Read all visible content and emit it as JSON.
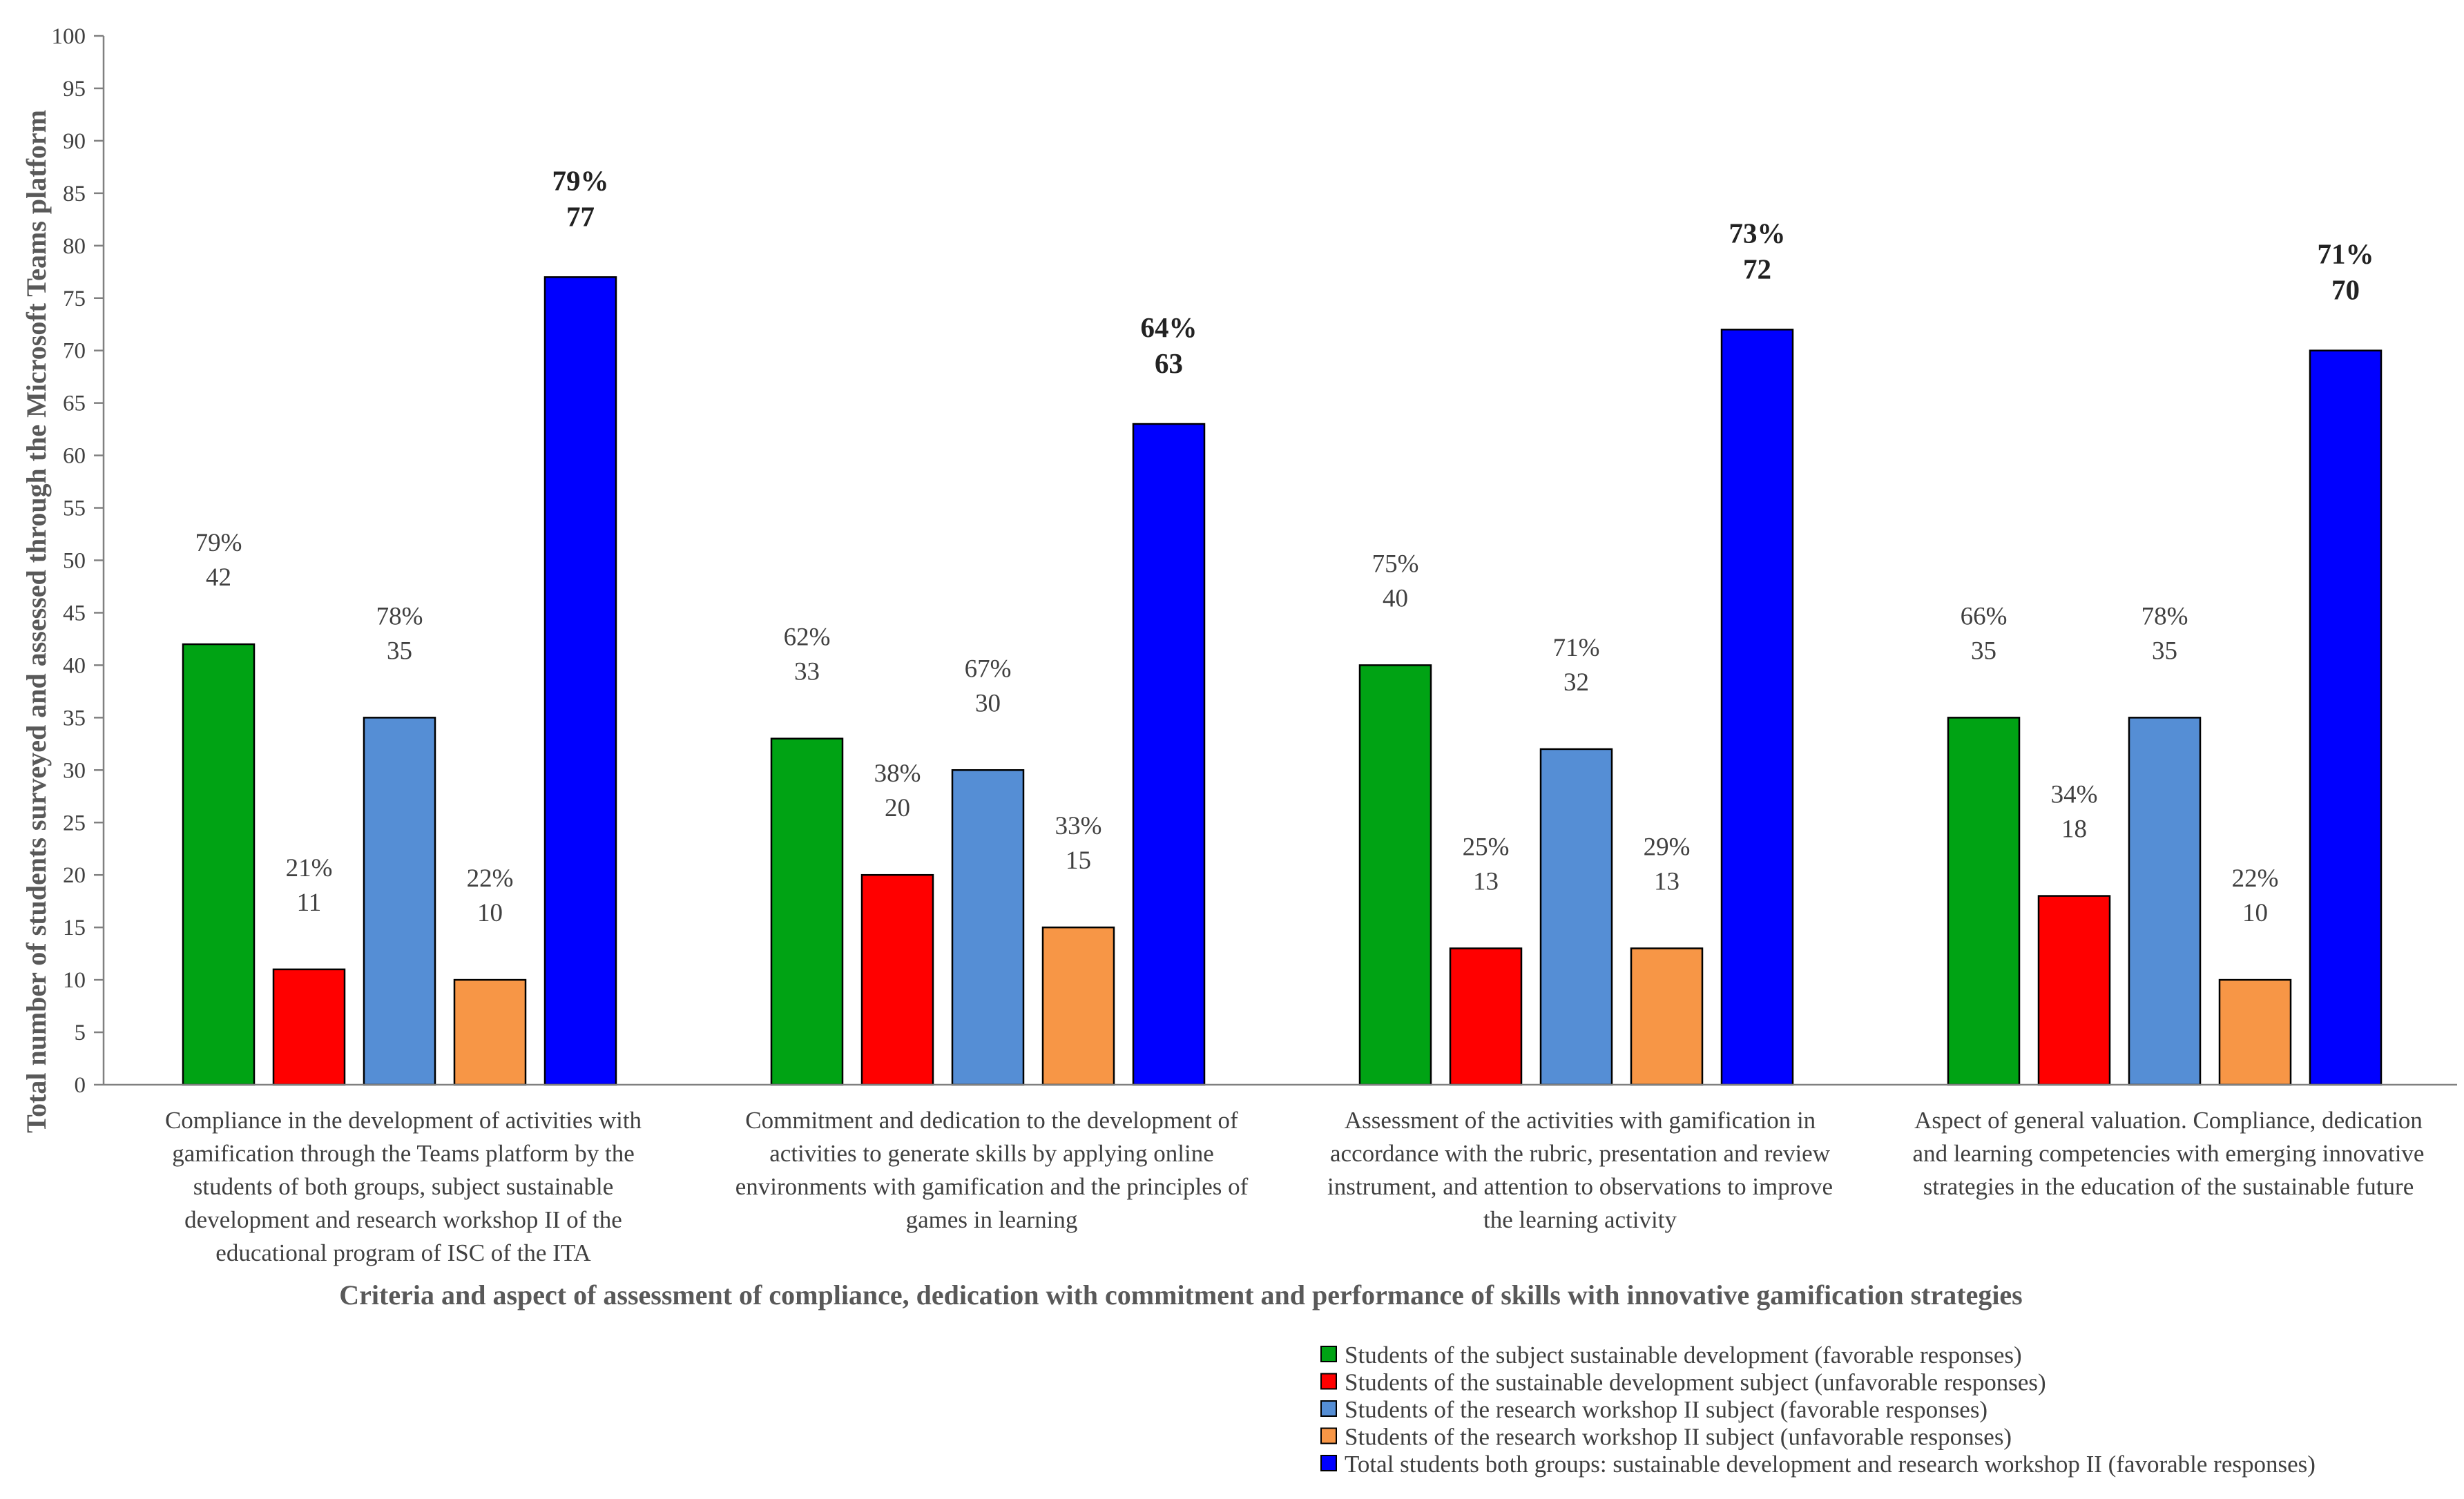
{
  "chart_data": {
    "type": "bar",
    "title": "",
    "ylabel": "Total number of students surveyed and assessed through the Microsoft Teams platform",
    "xlabel": "Criteria and aspect of assessment of compliance, dedication with commitment and performance of skills with innovative gamification strategies",
    "ylim": [
      0,
      100
    ],
    "yticks": [
      0,
      5,
      10,
      15,
      20,
      25,
      30,
      35,
      40,
      45,
      50,
      55,
      60,
      65,
      70,
      75,
      80,
      85,
      90,
      95,
      100
    ],
    "categories": [
      [
        "Compliance in the development of activities with",
        "gamification through the Teams platform by the",
        "students of both groups, subject sustainable",
        "development and research workshop II of the",
        "educational program of ISC of the ITA"
      ],
      [
        "Commitment and dedication to the development of",
        "activities to generate skills by applying online",
        "environments with gamification and the principles of",
        "games in learning"
      ],
      [
        "Assessment of the activities with gamification in",
        "accordance with the rubric, presentation and review",
        "instrument, and attention to observations to improve",
        "the learning activity"
      ],
      [
        "Aspect of general valuation. Compliance, dedication",
        "and learning competencies with emerging innovative",
        "strategies in the education of the sustainable future"
      ]
    ],
    "series": [
      {
        "name": "Students of the subject sustainable development (favorable responses)",
        "color": "#00a314",
        "values": [
          42,
          33,
          40,
          35
        ],
        "percent_labels": [
          "79%",
          "62%",
          "75%",
          "66%"
        ]
      },
      {
        "name": "Students of the sustainable development subject (unfavorable responses)",
        "color": "#ff0000",
        "values": [
          11,
          20,
          13,
          18
        ],
        "percent_labels": [
          "21%",
          "38%",
          "25%",
          "34%"
        ]
      },
      {
        "name": "Students of the research workshop II subject (favorable responses)",
        "color": "#558ed5",
        "values": [
          35,
          30,
          32,
          35
        ],
        "percent_labels": [
          "78%",
          "67%",
          "71%",
          "78%"
        ]
      },
      {
        "name": "Students of the research workshop II subject (unfavorable responses)",
        "color": "#f79646",
        "values": [
          10,
          15,
          13,
          10
        ],
        "percent_labels": [
          "22%",
          "33%",
          "29%",
          "22%"
        ]
      },
      {
        "name": "Total students both groups: sustainable development and research workshop II (favorable responses)",
        "color": "#0000ff",
        "values": [
          77,
          63,
          72,
          70
        ],
        "percent_labels": [
          "79%",
          "64%",
          "73%",
          "71%"
        ],
        "bold_labels": true
      }
    ],
    "legend_position": "bottom-right"
  }
}
